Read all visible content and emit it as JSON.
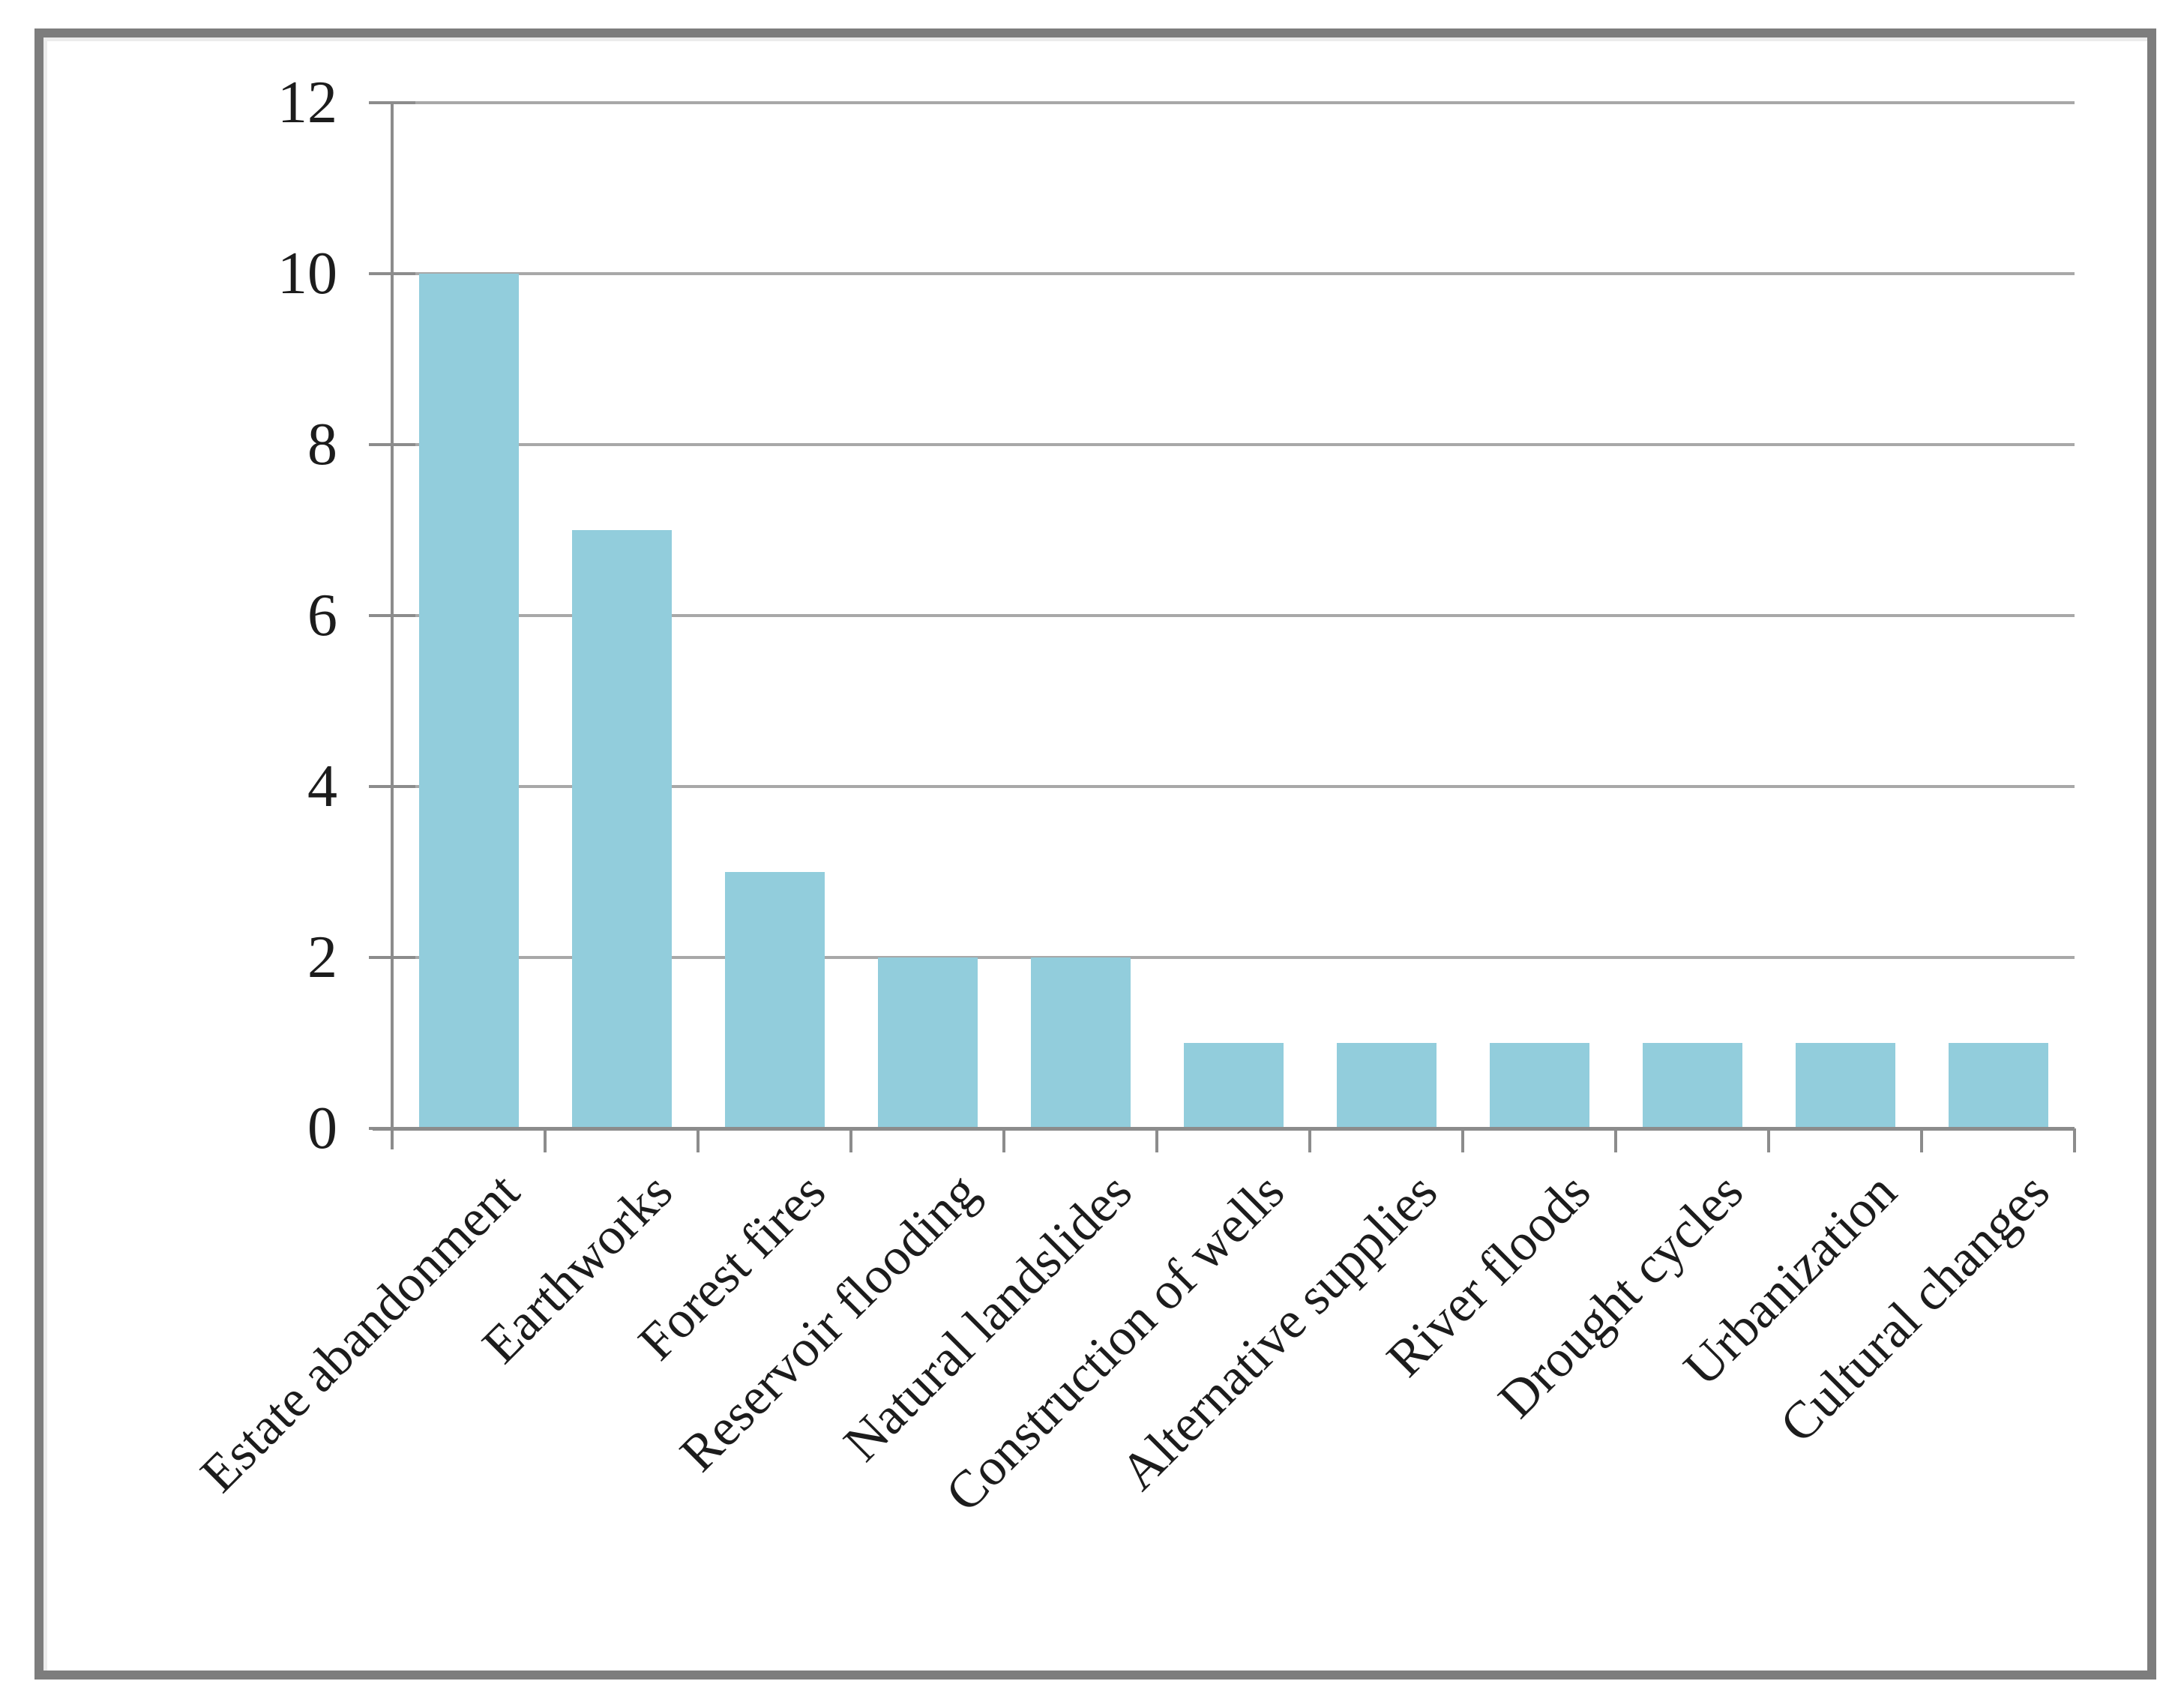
{
  "figure": {
    "background": "#FFFFFF",
    "frame_border_color": "#7D7D7D"
  },
  "chart_data": {
    "type": "bar",
    "title": "",
    "xlabel": "",
    "ylabel": "",
    "categories": [
      "Estate abandonment",
      "Earthworks",
      "Forest fires",
      "Reservoir flooding",
      "Natural landslides",
      "Construction of wells",
      "Alternative supplies",
      "River floods",
      "Drought cycles",
      "Urbanization",
      "Cultural changes"
    ],
    "values": [
      10,
      7,
      3,
      2,
      2,
      1,
      1,
      1,
      1,
      1,
      1
    ],
    "ylim": [
      0,
      12
    ],
    "yticks": [
      0,
      2,
      4,
      6,
      8,
      10,
      12
    ],
    "grid": "horizontal",
    "legend": "none",
    "bar_color": "#92CDDC",
    "axis_color": "#8C8C8C",
    "gridline_color": "#A8A8A8",
    "tick_label_color": "#1C1C1C",
    "x_label_rotation_deg": 45
  }
}
